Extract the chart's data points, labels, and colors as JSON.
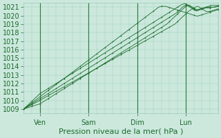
{
  "xlabel": "Pression niveau de la mer( hPa )",
  "ylim": [
    1008.5,
    1021.5
  ],
  "yticks": [
    1009,
    1010,
    1011,
    1012,
    1013,
    1014,
    1015,
    1016,
    1017,
    1018,
    1019,
    1020,
    1021
  ],
  "background_color": "#cce8dd",
  "grid_color": "#99ccbb",
  "line_color": "#1a6b2a",
  "n_points": 145,
  "xlim": [
    0,
    144
  ],
  "xtick_positions": [
    12,
    48,
    84,
    120
  ],
  "xtick_labels_final": [
    "Ven",
    "Sam",
    "Dim",
    "Lun"
  ],
  "vline_positions": [
    12,
    48,
    84,
    120
  ],
  "vline_color": "#2d7d3a",
  "label_fontsize": 8,
  "tick_fontsize": 7,
  "figsize": [
    3.2,
    2.0
  ],
  "dpi": 100,
  "series": [
    [
      1009.0,
      1009.08,
      1009.17,
      1009.25,
      1009.33,
      1009.42,
      1009.5,
      1009.58,
      1009.67,
      1009.75,
      1009.83,
      1009.92,
      1010.0,
      1010.09,
      1010.18,
      1010.27,
      1010.36,
      1010.45,
      1010.54,
      1010.63,
      1010.72,
      1010.81,
      1010.9,
      1010.99,
      1011.08,
      1011.17,
      1011.26,
      1011.35,
      1011.44,
      1011.53,
      1011.62,
      1011.71,
      1011.8,
      1011.89,
      1011.98,
      1012.07,
      1012.16,
      1012.25,
      1012.34,
      1012.43,
      1012.52,
      1012.61,
      1012.7,
      1012.79,
      1012.88,
      1012.97,
      1013.06,
      1013.15,
      1013.24,
      1013.33,
      1013.42,
      1013.51,
      1013.6,
      1013.69,
      1013.78,
      1013.87,
      1013.96,
      1014.05,
      1014.14,
      1014.23,
      1014.32,
      1014.41,
      1014.5,
      1014.59,
      1014.68,
      1014.77,
      1014.86,
      1014.95,
      1015.04,
      1015.13,
      1015.22,
      1015.31,
      1015.4,
      1015.49,
      1015.58,
      1015.67,
      1015.76,
      1015.85,
      1015.94,
      1016.03,
      1016.12,
      1016.21,
      1016.3,
      1016.39,
      1016.48,
      1016.57,
      1016.66,
      1016.75,
      1016.84,
      1016.93,
      1017.02,
      1017.11,
      1017.2,
      1017.29,
      1017.38,
      1017.47,
      1017.56,
      1017.65,
      1017.74,
      1017.83,
      1017.92,
      1018.01,
      1018.1,
      1018.19,
      1018.28,
      1018.37,
      1018.46,
      1018.55,
      1018.64,
      1018.73,
      1018.82,
      1018.91,
      1019.0,
      1019.15,
      1019.3,
      1019.45,
      1019.6,
      1019.75,
      1019.9,
      1020.05,
      1020.2,
      1020.35,
      1020.5,
      1020.6,
      1020.7,
      1020.8,
      1020.9,
      1021.0,
      1021.05,
      1021.1,
      1021.0,
      1020.9,
      1020.8,
      1020.7,
      1020.6,
      1020.5,
      1020.5,
      1020.5,
      1020.5,
      1020.55,
      1020.6,
      1020.65,
      1020.7,
      1020.75,
      1020.8
    ],
    [
      1009.0,
      1009.1,
      1009.2,
      1009.3,
      1009.4,
      1009.5,
      1009.6,
      1009.7,
      1009.8,
      1009.9,
      1010.0,
      1010.1,
      1010.2,
      1010.3,
      1010.4,
      1010.5,
      1010.6,
      1010.7,
      1010.8,
      1010.9,
      1011.0,
      1011.1,
      1011.2,
      1011.3,
      1011.4,
      1011.5,
      1011.6,
      1011.7,
      1011.8,
      1011.9,
      1012.0,
      1012.1,
      1012.2,
      1012.3,
      1012.4,
      1012.5,
      1012.6,
      1012.7,
      1012.8,
      1012.9,
      1013.0,
      1013.1,
      1013.2,
      1013.3,
      1013.4,
      1013.5,
      1013.6,
      1013.7,
      1013.8,
      1013.9,
      1014.0,
      1014.1,
      1014.2,
      1014.3,
      1014.4,
      1014.5,
      1014.6,
      1014.7,
      1014.8,
      1014.9,
      1015.0,
      1015.1,
      1015.2,
      1015.3,
      1015.4,
      1015.5,
      1015.6,
      1015.7,
      1015.8,
      1015.9,
      1016.0,
      1016.1,
      1016.2,
      1016.3,
      1016.4,
      1016.5,
      1016.6,
      1016.7,
      1016.8,
      1016.9,
      1017.0,
      1017.1,
      1017.2,
      1017.3,
      1017.4,
      1017.5,
      1017.6,
      1017.7,
      1017.8,
      1017.9,
      1018.0,
      1018.1,
      1018.2,
      1018.3,
      1018.4,
      1018.5,
      1018.6,
      1018.7,
      1018.8,
      1018.9,
      1019.0,
      1019.1,
      1019.2,
      1019.3,
      1019.4,
      1019.5,
      1019.6,
      1019.7,
      1019.8,
      1019.9,
      1020.0,
      1020.1,
      1020.2,
      1020.3,
      1020.45,
      1020.6,
      1020.75,
      1020.9,
      1021.05,
      1021.15,
      1021.2,
      1021.2,
      1021.1,
      1021.0,
      1020.9,
      1020.8,
      1020.7,
      1020.6,
      1020.55,
      1020.6,
      1020.65,
      1020.7,
      1020.75,
      1020.8,
      1020.85,
      1020.9,
      1020.9,
      1020.9,
      1020.9,
      1020.95,
      1021.0,
      1021.0,
      1021.0,
      1021.05,
      1021.1
    ],
    [
      1009.0,
      1009.12,
      1009.24,
      1009.36,
      1009.48,
      1009.6,
      1009.72,
      1009.84,
      1009.96,
      1010.08,
      1010.2,
      1010.32,
      1010.44,
      1010.56,
      1010.68,
      1010.8,
      1010.92,
      1011.04,
      1011.16,
      1011.28,
      1011.4,
      1011.52,
      1011.64,
      1011.76,
      1011.88,
      1012.0,
      1012.12,
      1012.24,
      1012.36,
      1012.48,
      1012.6,
      1012.72,
      1012.84,
      1012.96,
      1013.08,
      1013.2,
      1013.32,
      1013.44,
      1013.56,
      1013.68,
      1013.8,
      1013.92,
      1014.04,
      1014.16,
      1014.28,
      1014.4,
      1014.52,
      1014.64,
      1014.76,
      1014.88,
      1015.0,
      1015.12,
      1015.24,
      1015.36,
      1015.48,
      1015.6,
      1015.72,
      1015.84,
      1015.96,
      1016.08,
      1016.2,
      1016.32,
      1016.44,
      1016.56,
      1016.68,
      1016.8,
      1016.92,
      1017.04,
      1017.16,
      1017.28,
      1017.4,
      1017.52,
      1017.64,
      1017.76,
      1017.88,
      1018.0,
      1018.12,
      1018.24,
      1018.36,
      1018.48,
      1018.6,
      1018.72,
      1018.84,
      1018.96,
      1019.08,
      1019.2,
      1019.32,
      1019.44,
      1019.56,
      1019.68,
      1019.8,
      1019.92,
      1020.04,
      1020.16,
      1020.28,
      1020.4,
      1020.52,
      1020.64,
      1020.76,
      1020.88,
      1021.0,
      1021.05,
      1021.1,
      1021.1,
      1021.1,
      1021.1,
      1021.05,
      1021.0,
      1020.95,
      1020.9,
      1020.85,
      1020.8,
      1020.75,
      1020.7,
      1020.65,
      1020.6,
      1020.55,
      1020.5,
      1020.45,
      1020.4,
      1020.35,
      1020.3,
      1020.25,
      1020.2,
      1020.15,
      1020.1,
      1020.05,
      1020.0,
      1019.95,
      1019.95,
      1020.0,
      1020.05,
      1020.1,
      1020.15,
      1020.2,
      1020.25,
      1020.3,
      1020.35,
      1020.4,
      1020.45,
      1020.5,
      1020.55,
      1020.6,
      1020.65,
      1020.7
    ],
    [
      1009.0,
      1009.05,
      1009.1,
      1009.15,
      1009.2,
      1009.25,
      1009.3,
      1009.35,
      1009.4,
      1009.45,
      1009.5,
      1009.55,
      1009.6,
      1009.7,
      1009.8,
      1009.9,
      1010.0,
      1010.1,
      1010.2,
      1010.3,
      1010.4,
      1010.5,
      1010.6,
      1010.7,
      1010.8,
      1010.9,
      1011.0,
      1011.1,
      1011.2,
      1011.3,
      1011.4,
      1011.5,
      1011.6,
      1011.7,
      1011.8,
      1011.9,
      1012.0,
      1012.1,
      1012.2,
      1012.3,
      1012.4,
      1012.5,
      1012.6,
      1012.7,
      1012.8,
      1012.9,
      1013.0,
      1013.1,
      1013.2,
      1013.3,
      1013.4,
      1013.5,
      1013.6,
      1013.7,
      1013.8,
      1013.9,
      1014.0,
      1014.1,
      1014.2,
      1014.3,
      1014.4,
      1014.5,
      1014.6,
      1014.7,
      1014.8,
      1014.9,
      1015.0,
      1015.1,
      1015.2,
      1015.3,
      1015.4,
      1015.5,
      1015.6,
      1015.7,
      1015.8,
      1015.9,
      1016.0,
      1016.1,
      1016.2,
      1016.3,
      1016.4,
      1016.5,
      1016.6,
      1016.7,
      1016.8,
      1016.9,
      1017.0,
      1017.1,
      1017.2,
      1017.3,
      1017.4,
      1017.5,
      1017.6,
      1017.7,
      1017.8,
      1017.9,
      1018.0,
      1018.1,
      1018.2,
      1018.3,
      1018.4,
      1018.5,
      1018.6,
      1018.7,
      1018.8,
      1018.9,
      1019.0,
      1019.15,
      1019.3,
      1019.45,
      1019.6,
      1019.75,
      1019.9,
      1020.05,
      1020.2,
      1020.35,
      1020.5,
      1020.65,
      1020.8,
      1020.95,
      1021.1,
      1021.2,
      1021.25,
      1021.2,
      1021.1,
      1021.0,
      1020.9,
      1020.8,
      1020.7,
      1020.7,
      1020.75,
      1020.8,
      1020.85,
      1020.9,
      1020.95,
      1021.0,
      1021.0,
      1021.0,
      1021.0,
      1021.0,
      1021.0,
      1021.0,
      1021.05,
      1021.1,
      1021.15
    ],
    [
      1009.0,
      1009.15,
      1009.3,
      1009.45,
      1009.6,
      1009.75,
      1009.9,
      1010.05,
      1010.2,
      1010.35,
      1010.5,
      1010.65,
      1010.8,
      1010.9,
      1011.0,
      1011.1,
      1011.2,
      1011.3,
      1011.4,
      1011.5,
      1011.6,
      1011.7,
      1011.8,
      1011.9,
      1012.0,
      1012.1,
      1012.2,
      1012.3,
      1012.4,
      1012.5,
      1012.6,
      1012.7,
      1012.8,
      1012.9,
      1013.0,
      1013.1,
      1013.2,
      1013.3,
      1013.4,
      1013.5,
      1013.6,
      1013.7,
      1013.8,
      1013.9,
      1014.0,
      1014.1,
      1014.2,
      1014.3,
      1014.4,
      1014.5,
      1014.6,
      1014.7,
      1014.8,
      1014.9,
      1015.0,
      1015.1,
      1015.2,
      1015.3,
      1015.4,
      1015.5,
      1015.6,
      1015.7,
      1015.8,
      1015.9,
      1016.0,
      1016.1,
      1016.2,
      1016.3,
      1016.4,
      1016.5,
      1016.6,
      1016.7,
      1016.8,
      1016.9,
      1017.0,
      1017.1,
      1017.2,
      1017.3,
      1017.4,
      1017.5,
      1017.6,
      1017.7,
      1017.8,
      1017.9,
      1018.0,
      1018.1,
      1018.2,
      1018.3,
      1018.4,
      1018.5,
      1018.6,
      1018.7,
      1018.8,
      1018.9,
      1019.0,
      1019.1,
      1019.2,
      1019.3,
      1019.4,
      1019.5,
      1019.6,
      1019.7,
      1019.8,
      1019.9,
      1020.0,
      1020.1,
      1020.2,
      1020.3,
      1020.4,
      1020.5,
      1020.6,
      1020.7,
      1020.8,
      1020.9,
      1021.0,
      1021.1,
      1021.2,
      1021.3,
      1021.35,
      1021.4,
      1021.35,
      1021.3,
      1021.2,
      1021.1,
      1021.0,
      1020.9,
      1020.8,
      1020.7,
      1020.65,
      1020.7,
      1020.75,
      1020.8,
      1020.85,
      1020.9,
      1020.95,
      1021.0,
      1021.05,
      1021.1,
      1021.15,
      1021.2,
      1021.2,
      1021.2,
      1021.2,
      1021.2,
      1021.2
    ]
  ]
}
